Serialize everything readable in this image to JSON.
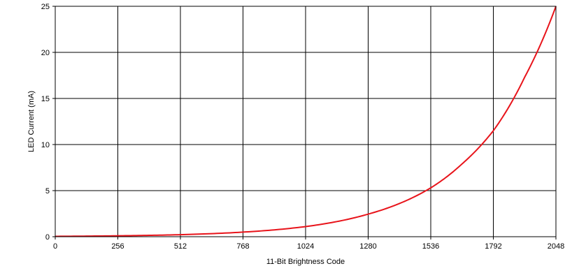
{
  "chart_data": {
    "type": "line",
    "title": "",
    "xlabel": "11-Bit Brightness Code",
    "ylabel": "LED Current (mA)",
    "xlim": [
      0,
      2048
    ],
    "ylim": [
      0,
      25
    ],
    "xticks": [
      0,
      256,
      512,
      768,
      1024,
      1280,
      1536,
      1792,
      2048
    ],
    "yticks": [
      0,
      5,
      10,
      15,
      20,
      25
    ],
    "xtick_labels": [
      "0",
      "256",
      "512",
      "768",
      "1024",
      "1280",
      "1536",
      "1792",
      "2048"
    ],
    "ytick_labels": [
      "0",
      "5",
      "10",
      "15",
      "20",
      "25"
    ],
    "grid": true,
    "legend": "none",
    "series": [
      {
        "color": "#e8141b",
        "x": [
          0,
          256,
          512,
          768,
          1024,
          1280,
          1536,
          1664,
          1792,
          1920,
          2048
        ],
        "y": [
          0.04,
          0.1,
          0.22,
          0.5,
          1.1,
          2.45,
          5.3,
          7.9,
          11.5,
          17.3,
          25
        ]
      }
    ]
  }
}
